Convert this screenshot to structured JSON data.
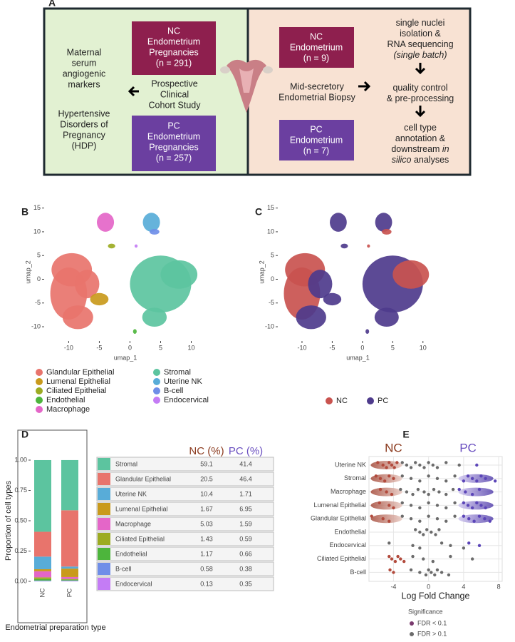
{
  "panel_labels": [
    "A",
    "B",
    "C",
    "D",
    "E"
  ],
  "panel_a": {
    "maternal": [
      "Maternal",
      "serum",
      "angiogenic",
      "markers"
    ],
    "hdp": [
      "Hypertensive",
      "Disorders of",
      "Pregnancy",
      "(HDP)"
    ],
    "cohort": [
      "Prospective",
      "Clinical",
      "Cohort Study"
    ],
    "nc_cohort": [
      "NC",
      "Endometrium",
      "Pregnancies",
      "(n = 291)"
    ],
    "pc_cohort": [
      "PC",
      "Endometrium",
      "Pregnancies",
      "(n = 257)"
    ],
    "nc_biopsy": [
      "NC",
      "Endometrium",
      "(n = 9)"
    ],
    "pc_biopsy": [
      "PC",
      "Endometrium",
      "(n = 7)"
    ],
    "biopsy": [
      "Mid-secretory",
      "Endometrial Biopsy"
    ],
    "steps": [
      [
        [
          "single nuclei"
        ],
        [
          "isolation &"
        ],
        [
          "RNA sequencing"
        ],
        [
          "(single batch)"
        ]
      ],
      [
        [
          "quality control"
        ],
        [
          "& pre-processing"
        ]
      ],
      [
        [
          "cell type"
        ],
        [
          "annotation &"
        ],
        [
          "downstream ",
          "in"
        ],
        [
          "silico",
          " analyses"
        ]
      ]
    ]
  },
  "chart_data": [
    {
      "type": "umap",
      "xlabel": "umap_1",
      "ylabel": "umap_2",
      "xlim": [
        -14,
        12.5
      ],
      "ylim": [
        -13,
        16
      ],
      "xticks": [
        -10,
        -5,
        0,
        5,
        10
      ],
      "yticks": [
        -10,
        -5,
        0,
        5,
        10,
        15
      ],
      "legend": [
        {
          "name": "Glandular Epithelial",
          "color": "#e8746c"
        },
        {
          "name": "Lumenal Epithelial",
          "color": "#c99a1c"
        },
        {
          "name": "Ciliated Epithelial",
          "color": "#9cab22"
        },
        {
          "name": "Endothelial",
          "color": "#4db53c"
        },
        {
          "name": "Macrophage",
          "color": "#e466c8"
        },
        {
          "name": "Stromal",
          "color": "#5cc49f"
        },
        {
          "name": "Uterine NK",
          "color": "#58acd8"
        },
        {
          "name": "B-cell",
          "color": "#6f8ee8"
        },
        {
          "name": "Endocervical",
          "color": "#c47cf5"
        }
      ]
    },
    {
      "type": "umap",
      "xlabel": "umap_1",
      "ylabel": "umap_2",
      "xlim": [
        -14,
        12.5
      ],
      "ylim": [
        -13,
        16
      ],
      "xticks": [
        -10,
        -5,
        0,
        5,
        10
      ],
      "yticks": [
        -10,
        -5,
        0,
        5,
        10,
        15
      ],
      "legend": [
        {
          "name": "NC",
          "color": "#c9534f"
        },
        {
          "name": "PC",
          "color": "#4e3b8c"
        }
      ]
    },
    {
      "type": "stacked_bar",
      "ylabel": "Proportion of cell types",
      "xlabel": "Endometrial preparation type",
      "categories": [
        "NC",
        "PC"
      ],
      "ylim": [
        0,
        1
      ],
      "yticks": [
        {
          "value": 0,
          "label": "0.00"
        },
        {
          "value": 0.25,
          "label": "0.25"
        },
        {
          "value": 0.5,
          "label": "0.50"
        },
        {
          "value": 0.75,
          "label": "0.75"
        },
        {
          "value": 1,
          "label": "1.00"
        }
      ],
      "series": [
        {
          "color": "#c47cf5",
          "values": [
            0.0013,
            0.0035
          ]
        },
        {
          "color": "#6f8ee8",
          "values": [
            0.0058,
            0.0038
          ]
        },
        {
          "color": "#4db53c",
          "values": [
            0.0117,
            0.0066
          ]
        },
        {
          "color": "#9cab22",
          "values": [
            0.0143,
            0.0059
          ]
        },
        {
          "color": "#e466c8",
          "values": [
            0.0503,
            0.0159
          ]
        },
        {
          "color": "#c99a1c",
          "values": [
            0.0167,
            0.0695
          ]
        },
        {
          "color": "#58acd8",
          "values": [
            0.104,
            0.0171
          ]
        },
        {
          "color": "#e8746c",
          "values": [
            0.205,
            0.464
          ]
        },
        {
          "color": "#5cc49f",
          "values": [
            0.591,
            0.414
          ]
        }
      ]
    },
    {
      "type": "beeswarm",
      "xlabel": "Log Fold Change",
      "xlim": [
        -6.8,
        8.4
      ],
      "xticks": [
        -4,
        0,
        4,
        8
      ],
      "categories": [
        "Uterine NK",
        "Stromal",
        "Macrophage",
        "Lumenal Epithelial",
        "Glandular Epithelial",
        "Endothelial",
        "Endocervical",
        "Ciliated Epithelial",
        "B-cell"
      ],
      "group_labels": [
        {
          "text": "NC",
          "color": "#8b3a1e"
        },
        {
          "text": "PC",
          "color": "#6a4fc0"
        }
      ],
      "legend_title": "Significance",
      "series": [
        {
          "name": "FDR < 0.1",
          "color": "#7a3a6e",
          "negative_color": "#b24a3c",
          "positive_color": "#5b45b8",
          "values": [
            [
              -5.8,
              -5.2,
              -4.8,
              -4.5,
              -4.2,
              -3.9,
              -3.6,
              5.5
            ],
            [
              -6,
              -5.5,
              -5,
              -4.5,
              -4,
              4,
              4.5,
              5,
              5.5,
              6,
              6.5,
              7.6
            ],
            [
              -5.5,
              -4.8,
              -4.2,
              3.5,
              4.2,
              5,
              5.8
            ],
            [
              -5.6,
              -4.5,
              -4,
              4,
              4.5,
              5,
              5.5,
              6,
              6.5
            ],
            [
              -6.5,
              -5.2,
              -4.5,
              4,
              4.6,
              5.2,
              5.8,
              6.4,
              7
            ],
            [],
            [
              4.6,
              5.8
            ],
            [
              -4.5,
              -4.2,
              -3.8,
              -3.5,
              -3.2,
              -2.8
            ],
            [
              -4.4,
              -4
            ]
          ]
        },
        {
          "name": "FDR > 0.1",
          "color": "#6b6b6b",
          "values": [
            [
              -3,
              -2.5,
              -2,
              -1.5,
              -1,
              -0.5,
              0,
              0.5,
              1,
              2,
              3.5
            ],
            [
              -3,
              -2,
              -1,
              0,
              1,
              2,
              3
            ],
            [
              -3.2,
              -2.5,
              -1.8,
              -1.2,
              -0.5,
              0,
              0.6,
              1.2,
              2,
              2.8
            ],
            [
              -3,
              -2,
              -1,
              0,
              1,
              2,
              3
            ],
            [
              -3,
              -2,
              -1,
              0,
              1,
              2,
              3
            ],
            [
              -1.5,
              -1,
              -0.6,
              -0.2,
              0.3,
              0.8,
              1.2
            ],
            [
              -4.5,
              -1.8,
              -1,
              1.5,
              2.5,
              4
            ],
            [
              -1.8,
              -0.6,
              0.5,
              2.5,
              5
            ],
            [
              -2,
              -1,
              -0.3,
              0,
              0.3,
              0.7,
              1,
              1.5,
              2.3
            ]
          ]
        }
      ]
    }
  ],
  "table_d": {
    "header": [
      "NC (%)",
      "PC (%)"
    ],
    "header_colors": [
      "#8b3a1e",
      "#6a4fc0"
    ],
    "rows": [
      [
        "Stromal",
        59.1,
        41.4
      ],
      [
        "Glandular Epithelial",
        20.5,
        46.4
      ],
      [
        "Uterine NK",
        10.4,
        1.71
      ],
      [
        "Lumenal Epithelial",
        1.67,
        6.95
      ],
      [
        "Macrophage",
        5.03,
        1.59
      ],
      [
        "Ciliated Epithelial",
        1.43,
        0.59
      ],
      [
        "Endothelial",
        1.17,
        0.66
      ],
      [
        "B-cell",
        0.58,
        0.38
      ],
      [
        "Endocervical",
        0.13,
        0.35
      ]
    ],
    "colors": [
      "#5cc49f",
      "#e8746c",
      "#58acd8",
      "#c99a1c",
      "#e466c8",
      "#9cab22",
      "#4db53c",
      "#6f8ee8",
      "#c47cf5"
    ]
  }
}
